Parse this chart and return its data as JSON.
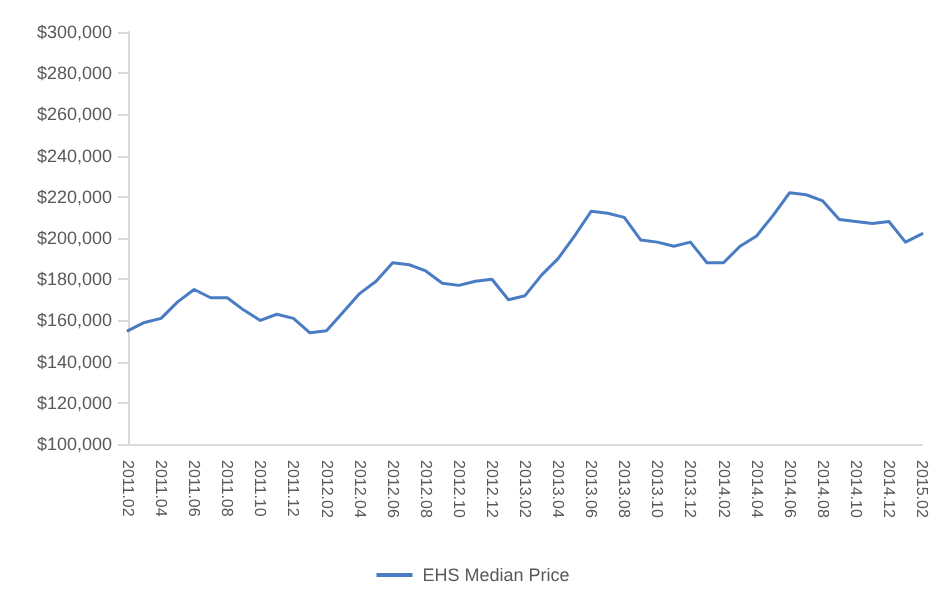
{
  "chart_data": {
    "type": "line",
    "categories": [
      "2011.02",
      null,
      "2011.04",
      null,
      "2011.06",
      null,
      "2011.08",
      null,
      "2011.10",
      null,
      "2011.12",
      null,
      "2012.02",
      null,
      "2012.04",
      null,
      "2012.06",
      null,
      "2012.08",
      null,
      "2012.10",
      null,
      "2012.12",
      null,
      "2013.02",
      null,
      "2013.04",
      null,
      "2013.06",
      null,
      "2013.08",
      null,
      "2013.10",
      null,
      "2013.12",
      null,
      "2014.02",
      null,
      "2014.04",
      null,
      "2014.06",
      null,
      "2014.08",
      null,
      "2014.10",
      null,
      "2014.12",
      null,
      "2015.02"
    ],
    "series": [
      {
        "name": "EHS Median Price",
        "color": "#4a7cc4",
        "values": [
          155000,
          159000,
          161000,
          169000,
          175000,
          171000,
          171000,
          165000,
          160000,
          163000,
          161000,
          154000,
          155000,
          164000,
          173000,
          179000,
          188000,
          187000,
          184000,
          178000,
          177000,
          179000,
          180000,
          170000,
          172000,
          182000,
          190000,
          201000,
          213000,
          212000,
          210000,
          199000,
          198000,
          196000,
          198000,
          188000,
          188000,
          196000,
          201000,
          211000,
          222000,
          221000,
          218000,
          209000,
          208000,
          207000,
          208000,
          198000,
          202000
        ]
      }
    ],
    "ylim": [
      100000,
      300000
    ],
    "yticks": [
      {
        "value": 100000,
        "label": "$100,000"
      },
      {
        "value": 120000,
        "label": "$120,000"
      },
      {
        "value": 140000,
        "label": "$140,000"
      },
      {
        "value": 160000,
        "label": "$160,000"
      },
      {
        "value": 180000,
        "label": "$180,000"
      },
      {
        "value": 200000,
        "label": "$200,000"
      },
      {
        "value": 220000,
        "label": "$220,000"
      },
      {
        "value": 240000,
        "label": "$240,000"
      },
      {
        "value": 260000,
        "label": "$260,000"
      },
      {
        "value": 280000,
        "label": "$280,000"
      },
      {
        "value": 300000,
        "label": "$300,000"
      }
    ],
    "grid": false,
    "legend": "bottom",
    "marker": "none",
    "line_style": "solid"
  }
}
